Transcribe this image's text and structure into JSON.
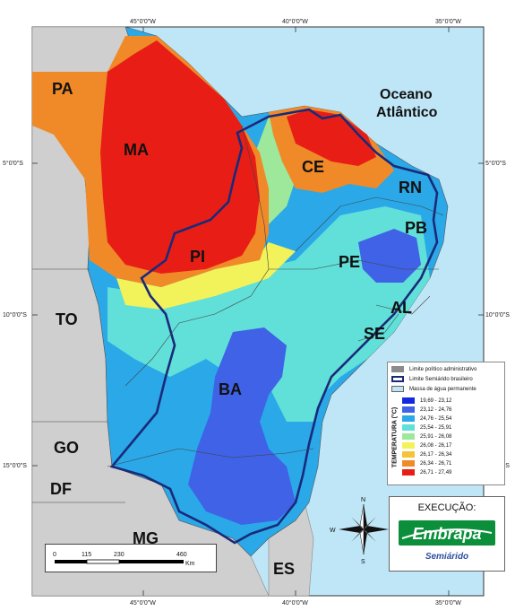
{
  "map": {
    "ocean_label_line1": "Oceano",
    "ocean_label_line2": "Atlântico",
    "states": {
      "pa": "PA",
      "ma": "MA",
      "ce": "CE",
      "rn": "RN",
      "pb": "PB",
      "pe": "PE",
      "pi": "PI",
      "al": "AL",
      "se": "SE",
      "ba": "BA",
      "to": "TO",
      "go": "GO",
      "df": "DF",
      "mg": "MG",
      "es": "ES"
    },
    "longitude_ticks": [
      "45°0'0\"W",
      "40°0'0\"W",
      "35°0'0\"W"
    ],
    "latitude_ticks": [
      "5°0'0\"S",
      "10°0'0\"S",
      "15°0'0\"S"
    ]
  },
  "legend": {
    "items_top": [
      {
        "label": "Limite político administrativo",
        "color": "#8c8c8c"
      },
      {
        "label": "Limite Semiárido brasileiro",
        "color": "#1a2a7a"
      },
      {
        "label": "Massa de água permanente",
        "color": "#bfe6f7"
      }
    ],
    "title": "TEMPERATURA (°C)",
    "classes": [
      {
        "label": "19,69 - 23,12",
        "color": "#1428e0"
      },
      {
        "label": "23,12 - 24,76",
        "color": "#3f62e6"
      },
      {
        "label": "24,76 - 25,54",
        "color": "#2aa8e8"
      },
      {
        "label": "25,54 - 25,91",
        "color": "#60e0d8"
      },
      {
        "label": "25,91 - 26,08",
        "color": "#9de89a"
      },
      {
        "label": "26,08 - 26,17",
        "color": "#f2f25a"
      },
      {
        "label": "26,17 - 26,34",
        "color": "#f5c23a"
      },
      {
        "label": "26,34 - 26,71",
        "color": "#f08a28"
      },
      {
        "label": "26,71 - 27,49",
        "color": "#e81e16"
      }
    ]
  },
  "execucao": {
    "title": "EXECUÇÃO:",
    "logo_text": "Embrapa",
    "subtitle": "Semiárido"
  },
  "scale_bar": {
    "ticks": [
      "0",
      "115",
      "230",
      "460"
    ],
    "unit": "Km"
  },
  "compass": {
    "n": "N",
    "s": "S",
    "e": "E",
    "w": "W"
  }
}
